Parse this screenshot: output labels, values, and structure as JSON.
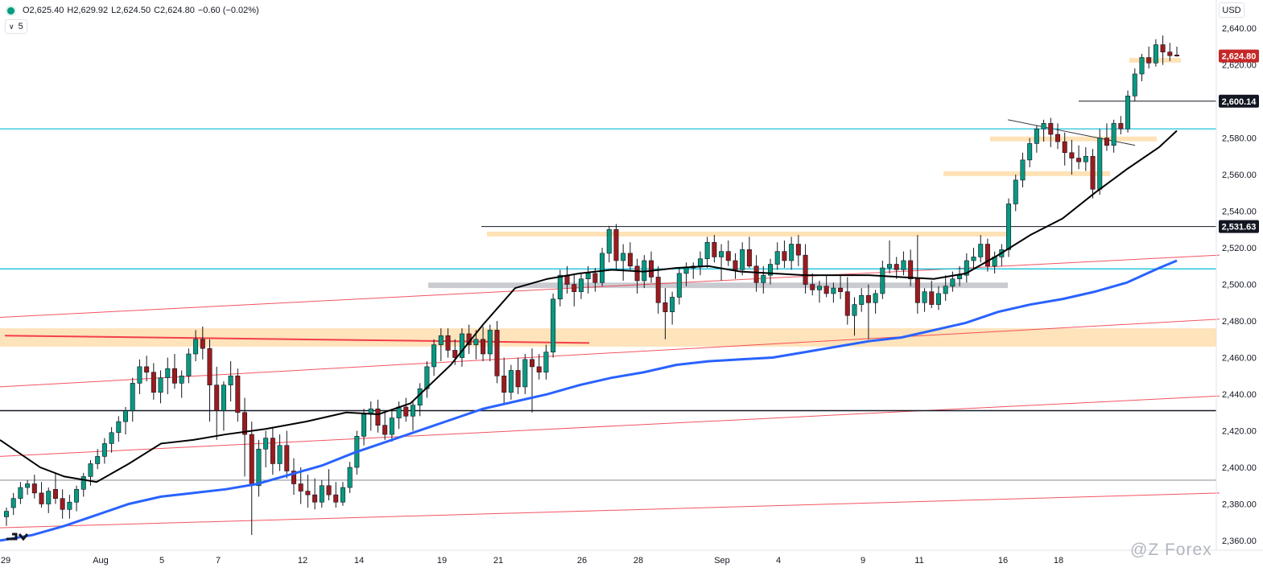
{
  "header": {
    "open": "O2,625.40",
    "high": "H2,629.92",
    "low": "L2,624.50",
    "close": "C2,624.80",
    "change": "−0.60 (−0.02%)",
    "volume_label": "5",
    "currency": "USD"
  },
  "watermark": "@Z Forex",
  "colors": {
    "up": "#089981",
    "down": "#9b1b1e",
    "ema_short": "#000000",
    "ema_long": "#2962ff",
    "support": "#ffe0b2",
    "cyan_line": "#00bcd4",
    "channel": "#f23645"
  },
  "chart_data": {
    "type": "candlestick",
    "ylim": [
      2360,
      2644
    ],
    "y_ticks": [
      "2,640.00",
      "2,620.00",
      "2,580.00",
      "2,560.00",
      "2,540.00",
      "2,520.00",
      "2,500.00",
      "2,480.00",
      "2,460.00",
      "2,440.00",
      "2,420.00",
      "2,400.00",
      "2,380.00",
      "2,360.00"
    ],
    "y_tick_values": [
      2640,
      2620,
      2580,
      2560,
      2540,
      2520,
      2500,
      2480,
      2460,
      2440,
      2420,
      2400,
      2380,
      2360
    ],
    "x_ticks": [
      "29",
      "Aug",
      "5",
      "7",
      "12",
      "14",
      "19",
      "21",
      "26",
      "28",
      "Sep",
      "4",
      "9",
      "11",
      "16",
      "18"
    ],
    "x_tick_idx": [
      3,
      121,
      197,
      267,
      372,
      442,
      545,
      615,
      719,
      789,
      893,
      963,
      1068,
      1138,
      1242,
      1311
    ],
    "price_labels": [
      {
        "text": "2,624.80",
        "value": 2624.8,
        "style": "red"
      },
      {
        "text": "2,600.14",
        "value": 2600.14,
        "style": "dark"
      },
      {
        "text": "2,531.63",
        "value": 2531.63,
        "style": "dark"
      }
    ],
    "candles": [
      [
        2373,
        2378,
        2368,
        2376
      ],
      [
        2378,
        2386,
        2374,
        2383
      ],
      [
        2383,
        2392,
        2380,
        2389
      ],
      [
        2389,
        2393,
        2385,
        2391
      ],
      [
        2391,
        2396,
        2383,
        2386
      ],
      [
        2386,
        2392,
        2378,
        2380
      ],
      [
        2380,
        2389,
        2375,
        2387
      ],
      [
        2388,
        2397,
        2380,
        2383
      ],
      [
        2383,
        2388,
        2372,
        2377
      ],
      [
        2377,
        2385,
        2372,
        2381
      ],
      [
        2381,
        2390,
        2376,
        2388
      ],
      [
        2388,
        2397,
        2384,
        2395
      ],
      [
        2395,
        2404,
        2390,
        2402
      ],
      [
        2402,
        2410,
        2399,
        2406
      ],
      [
        2406,
        2416,
        2402,
        2413
      ],
      [
        2413,
        2422,
        2408,
        2419
      ],
      [
        2419,
        2428,
        2414,
        2425
      ],
      [
        2425,
        2433,
        2418,
        2431
      ],
      [
        2431,
        2449,
        2425,
        2446
      ],
      [
        2446,
        2459,
        2440,
        2455
      ],
      [
        2455,
        2461,
        2447,
        2452
      ],
      [
        2452,
        2457,
        2437,
        2441
      ],
      [
        2441,
        2453,
        2435,
        2449
      ],
      [
        2449,
        2460,
        2440,
        2454
      ],
      [
        2454,
        2462,
        2443,
        2446
      ],
      [
        2446,
        2453,
        2438,
        2450
      ],
      [
        2450,
        2465,
        2446,
        2462
      ],
      [
        2462,
        2475,
        2458,
        2470
      ],
      [
        2470,
        2477,
        2459,
        2465
      ],
      [
        2465,
        2470,
        2425,
        2445
      ],
      [
        2445,
        2455,
        2415,
        2431
      ],
      [
        2431,
        2447,
        2420,
        2445
      ],
      [
        2445,
        2458,
        2436,
        2450
      ],
      [
        2450,
        2454,
        2425,
        2430
      ],
      [
        2430,
        2438,
        2395,
        2418
      ],
      [
        2418,
        2425,
        2363,
        2390
      ],
      [
        2390,
        2415,
        2384,
        2410
      ],
      [
        2410,
        2420,
        2400,
        2416
      ],
      [
        2416,
        2422,
        2396,
        2402
      ],
      [
        2402,
        2418,
        2398,
        2412
      ],
      [
        2412,
        2420,
        2394,
        2398
      ],
      [
        2398,
        2405,
        2385,
        2391
      ],
      [
        2391,
        2400,
        2380,
        2387
      ],
      [
        2387,
        2396,
        2378,
        2385
      ],
      [
        2385,
        2394,
        2377,
        2381
      ],
      [
        2381,
        2393,
        2378,
        2390
      ],
      [
        2390,
        2399,
        2382,
        2385
      ],
      [
        2385,
        2392,
        2378,
        2381
      ],
      [
        2381,
        2392,
        2379,
        2389
      ],
      [
        2389,
        2403,
        2386,
        2400
      ],
      [
        2400,
        2420,
        2396,
        2417
      ],
      [
        2417,
        2432,
        2412,
        2429
      ],
      [
        2429,
        2436,
        2420,
        2432
      ],
      [
        2432,
        2437,
        2419,
        2423
      ],
      [
        2423,
        2430,
        2415,
        2418
      ],
      [
        2418,
        2431,
        2414,
        2427
      ],
      [
        2427,
        2436,
        2421,
        2433
      ],
      [
        2433,
        2438,
        2425,
        2428
      ],
      [
        2428,
        2436,
        2420,
        2434
      ],
      [
        2434,
        2446,
        2428,
        2443
      ],
      [
        2443,
        2458,
        2438,
        2455
      ],
      [
        2455,
        2470,
        2450,
        2467
      ],
      [
        2467,
        2476,
        2458,
        2472
      ],
      [
        2472,
        2476,
        2460,
        2464
      ],
      [
        2464,
        2470,
        2456,
        2460
      ],
      [
        2460,
        2476,
        2455,
        2473
      ],
      [
        2473,
        2478,
        2462,
        2467
      ],
      [
        2467,
        2475,
        2459,
        2470
      ],
      [
        2470,
        2477,
        2458,
        2462
      ],
      [
        2462,
        2478,
        2458,
        2475
      ],
      [
        2475,
        2480,
        2446,
        2450
      ],
      [
        2450,
        2460,
        2435,
        2441
      ],
      [
        2441,
        2456,
        2437,
        2453
      ],
      [
        2453,
        2460,
        2440,
        2444
      ],
      [
        2444,
        2462,
        2440,
        2459
      ],
      [
        2459,
        2465,
        2430,
        2455
      ],
      [
        2455,
        2462,
        2448,
        2452
      ],
      [
        2452,
        2467,
        2448,
        2463
      ],
      [
        2463,
        2495,
        2460,
        2492
      ],
      [
        2492,
        2508,
        2488,
        2505
      ],
      [
        2505,
        2510,
        2495,
        2500
      ],
      [
        2500,
        2506,
        2488,
        2496
      ],
      [
        2496,
        2506,
        2492,
        2503
      ],
      [
        2503,
        2510,
        2495,
        2506
      ],
      [
        2506,
        2509,
        2496,
        2501
      ],
      [
        2501,
        2520,
        2499,
        2517
      ],
      [
        2517,
        2532,
        2512,
        2530
      ],
      [
        2530,
        2533,
        2508,
        2513
      ],
      [
        2513,
        2522,
        2502,
        2517
      ],
      [
        2517,
        2523,
        2508,
        2510
      ],
      [
        2510,
        2514,
        2495,
        2502
      ],
      [
        2502,
        2516,
        2498,
        2513
      ],
      [
        2513,
        2518,
        2501,
        2504
      ],
      [
        2504,
        2510,
        2484,
        2490
      ],
      [
        2490,
        2498,
        2470,
        2485
      ],
      [
        2485,
        2496,
        2478,
        2493
      ],
      [
        2493,
        2509,
        2489,
        2506
      ],
      [
        2506,
        2512,
        2499,
        2509
      ],
      [
        2509,
        2512,
        2503,
        2510
      ],
      [
        2510,
        2518,
        2505,
        2514
      ],
      [
        2514,
        2526,
        2509,
        2523
      ],
      [
        2523,
        2527,
        2512,
        2515
      ],
      [
        2515,
        2522,
        2502,
        2518
      ],
      [
        2518,
        2524,
        2510,
        2513
      ],
      [
        2513,
        2517,
        2503,
        2508
      ],
      [
        2508,
        2523,
        2505,
        2519
      ],
      [
        2519,
        2526,
        2509,
        2510
      ],
      [
        2510,
        2516,
        2496,
        2501
      ],
      [
        2501,
        2510,
        2495,
        2505
      ],
      [
        2505,
        2514,
        2500,
        2511
      ],
      [
        2511,
        2523,
        2508,
        2518
      ],
      [
        2518,
        2524,
        2509,
        2513
      ],
      [
        2513,
        2526,
        2508,
        2522
      ],
      [
        2522,
        2527,
        2510,
        2516
      ],
      [
        2516,
        2522,
        2495,
        2500
      ],
      [
        2500,
        2506,
        2494,
        2497
      ],
      [
        2497,
        2502,
        2490,
        2499
      ],
      [
        2499,
        2505,
        2493,
        2495
      ],
      [
        2495,
        2501,
        2490,
        2498
      ],
      [
        2498,
        2505,
        2492,
        2496
      ],
      [
        2496,
        2504,
        2478,
        2483
      ],
      [
        2483,
        2493,
        2472,
        2489
      ],
      [
        2489,
        2498,
        2485,
        2494
      ],
      [
        2494,
        2500,
        2470,
        2490
      ],
      [
        2490,
        2497,
        2484,
        2495
      ],
      [
        2495,
        2513,
        2492,
        2509
      ],
      [
        2509,
        2524,
        2506,
        2511
      ],
      [
        2511,
        2515,
        2503,
        2508
      ],
      [
        2508,
        2518,
        2505,
        2513
      ],
      [
        2513,
        2519,
        2499,
        2503
      ],
      [
        2503,
        2527,
        2484,
        2490
      ],
      [
        2490,
        2498,
        2485,
        2496
      ],
      [
        2496,
        2502,
        2487,
        2489
      ],
      [
        2489,
        2499,
        2486,
        2495
      ],
      [
        2495,
        2505,
        2491,
        2499
      ],
      [
        2499,
        2507,
        2496,
        2503
      ],
      [
        2503,
        2510,
        2499,
        2505
      ],
      [
        2505,
        2517,
        2501,
        2513
      ],
      [
        2513,
        2520,
        2508,
        2515
      ],
      [
        2515,
        2527,
        2512,
        2522
      ],
      [
        2522,
        2525,
        2507,
        2510
      ],
      [
        2510,
        2518,
        2506,
        2515
      ],
      [
        2515,
        2522,
        2510,
        2519
      ],
      [
        2519,
        2547,
        2515,
        2544
      ],
      [
        2544,
        2560,
        2540,
        2557
      ],
      [
        2557,
        2572,
        2553,
        2568
      ],
      [
        2568,
        2580,
        2564,
        2577
      ],
      [
        2577,
        2587,
        2572,
        2585
      ],
      [
        2585,
        2590,
        2578,
        2588
      ],
      [
        2588,
        2591,
        2575,
        2582
      ],
      [
        2582,
        2588,
        2574,
        2578
      ],
      [
        2578,
        2583,
        2565,
        2572
      ],
      [
        2572,
        2579,
        2560,
        2569
      ],
      [
        2569,
        2576,
        2563,
        2567
      ],
      [
        2567,
        2575,
        2562,
        2570
      ],
      [
        2570,
        2574,
        2547,
        2552
      ],
      [
        2552,
        2585,
        2549,
        2580
      ],
      [
        2580,
        2588,
        2573,
        2576
      ],
      [
        2576,
        2590,
        2572,
        2588
      ],
      [
        2588,
        2592,
        2582,
        2585
      ],
      [
        2585,
        2606,
        2583,
        2603
      ],
      [
        2603,
        2618,
        2600,
        2615
      ],
      [
        2615,
        2626,
        2611,
        2624
      ],
      [
        2624,
        2630,
        2618,
        2621
      ],
      [
        2621,
        2634,
        2619,
        2631
      ],
      [
        2631,
        2636,
        2620,
        2627
      ],
      [
        2627,
        2632,
        2622,
        2625
      ],
      [
        2625.4,
        2629.92,
        2624.5,
        2624.8
      ]
    ],
    "ema_short": [
      [
        0,
        2415
      ],
      [
        50,
        2400
      ],
      [
        80,
        2395
      ],
      [
        120,
        2392
      ],
      [
        160,
        2402
      ],
      [
        200,
        2413
      ],
      [
        240,
        2415
      ],
      [
        280,
        2418
      ],
      [
        330,
        2421
      ],
      [
        380,
        2425
      ],
      [
        430,
        2430
      ],
      [
        470,
        2429
      ],
      [
        510,
        2435
      ],
      [
        560,
        2456
      ],
      [
        600,
        2478
      ],
      [
        640,
        2498
      ],
      [
        680,
        2503
      ],
      [
        720,
        2506
      ],
      [
        760,
        2508
      ],
      [
        800,
        2507
      ],
      [
        840,
        2509
      ],
      [
        880,
        2510
      ],
      [
        920,
        2507
      ],
      [
        960,
        2506
      ],
      [
        1000,
        2505
      ],
      [
        1040,
        2505
      ],
      [
        1080,
        2505
      ],
      [
        1120,
        2504
      ],
      [
        1160,
        2503
      ],
      [
        1200,
        2506
      ],
      [
        1240,
        2516
      ],
      [
        1280,
        2527
      ],
      [
        1320,
        2536
      ],
      [
        1360,
        2550
      ],
      [
        1400,
        2563
      ],
      [
        1440,
        2575
      ],
      [
        1462,
        2584
      ]
    ],
    "ema_long": [
      [
        0,
        2360
      ],
      [
        40,
        2363
      ],
      [
        80,
        2368
      ],
      [
        120,
        2374
      ],
      [
        160,
        2380
      ],
      [
        200,
        2384
      ],
      [
        240,
        2386
      ],
      [
        280,
        2388
      ],
      [
        320,
        2391
      ],
      [
        360,
        2396
      ],
      [
        400,
        2401
      ],
      [
        440,
        2408
      ],
      [
        480,
        2414
      ],
      [
        520,
        2420
      ],
      [
        560,
        2426
      ],
      [
        600,
        2432
      ],
      [
        640,
        2436
      ],
      [
        680,
        2440
      ],
      [
        720,
        2445
      ],
      [
        760,
        2449
      ],
      [
        800,
        2452
      ],
      [
        840,
        2456
      ],
      [
        880,
        2458
      ],
      [
        920,
        2459
      ],
      [
        960,
        2460
      ],
      [
        1000,
        2463
      ],
      [
        1040,
        2466
      ],
      [
        1080,
        2469
      ],
      [
        1120,
        2471
      ],
      [
        1160,
        2475
      ],
      [
        1200,
        2479
      ],
      [
        1240,
        2485
      ],
      [
        1280,
        2489
      ],
      [
        1320,
        2492
      ],
      [
        1360,
        2496
      ],
      [
        1400,
        2501
      ],
      [
        1440,
        2509
      ],
      [
        1462,
        2513
      ]
    ],
    "horizontal_lines": [
      {
        "value": 2585,
        "color": "cyan"
      },
      {
        "value": 2508.5,
        "color": "cyan"
      },
      {
        "value": 2431,
        "color": "black"
      },
      {
        "value": 2393,
        "color": "grey"
      }
    ],
    "zones": [
      {
        "from": 2466,
        "to": 2476,
        "color": "orange",
        "opacity": 0.4
      },
      {
        "from": 2498,
        "to": 2501,
        "color": "grey",
        "opacity": 0.5
      }
    ],
    "orange_levels": [
      {
        "value": 2527.5,
        "x0": 605,
        "x1": 1252
      },
      {
        "value": 2579.5,
        "x0": 1230,
        "x1": 1437
      },
      {
        "value": 2560.5,
        "x0": 1172,
        "x1": 1379
      },
      {
        "value": 2622.5,
        "x0": 1403,
        "x1": 1467
      }
    ],
    "trend_lines": [
      {
        "points": [
          [
            0,
            2482
          ],
          [
            1515,
            2516
          ]
        ],
        "color": "red",
        "width": 1
      },
      {
        "points": [
          [
            0,
            2444
          ],
          [
            1515,
            2481
          ]
        ],
        "color": "red",
        "width": 1
      },
      {
        "points": [
          [
            0,
            2406
          ],
          [
            1515,
            2439
          ]
        ],
        "color": "red",
        "width": 1
      },
      {
        "points": [
          [
            0,
            2367
          ],
          [
            1515,
            2386
          ]
        ],
        "color": "red",
        "width": 1
      },
      {
        "points": [
          [
            6,
            2472
          ],
          [
            732,
            2468
          ]
        ],
        "color": "red",
        "width": 2
      },
      {
        "points": [
          [
            1252,
            2590
          ],
          [
            1410,
            2576
          ]
        ],
        "color": "black",
        "width": 1
      }
    ],
    "level_lines": [
      {
        "value": 2531.63,
        "x0": 598,
        "x1": 1511
      },
      {
        "value": 2600.14,
        "x0": 1340,
        "x1": 1511
      }
    ]
  }
}
